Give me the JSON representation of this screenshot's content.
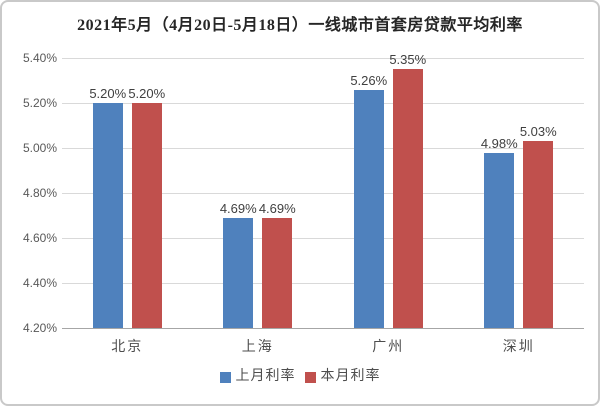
{
  "title": "2021年5月（4月20日-5月18日）一线城市首套房贷款平均利率",
  "chart_data": {
    "type": "bar",
    "title": "2021年5月（4月20日-5月18日）一线城市首套房贷款平均利率",
    "categories": [
      "北京",
      "上海",
      "广州",
      "深圳"
    ],
    "series": [
      {
        "name": "上月利率",
        "color": "#4F81BD",
        "values": [
          5.2,
          4.69,
          5.26,
          4.98
        ],
        "data_labels": [
          "5.20%",
          "4.69%",
          "5.26%",
          "4.98%"
        ]
      },
      {
        "name": "本月利率",
        "color": "#C0504D",
        "values": [
          5.2,
          4.69,
          5.35,
          5.03
        ],
        "data_labels": [
          "5.20%",
          "4.69%",
          "5.35%",
          "5.03%"
        ]
      }
    ],
    "y_axis": {
      "min": 4.2,
      "max": 5.4,
      "step": 0.2,
      "tick_labels_top_to_bottom": [
        "5.40%",
        "5.20%",
        "5.00%",
        "4.80%",
        "4.60%",
        "4.40%",
        "4.20%"
      ]
    },
    "grid": true,
    "legend_position": "bottom"
  },
  "colors": {
    "series_prev_month": "#4F81BD",
    "series_this_month": "#C0504D",
    "gridline": "#d9d9d9",
    "axis_line": "#a6a6a6",
    "tick_text": "#595959",
    "label_text": "#404040",
    "title_text": "#262626",
    "frame_border": "#c9c9c9"
  }
}
